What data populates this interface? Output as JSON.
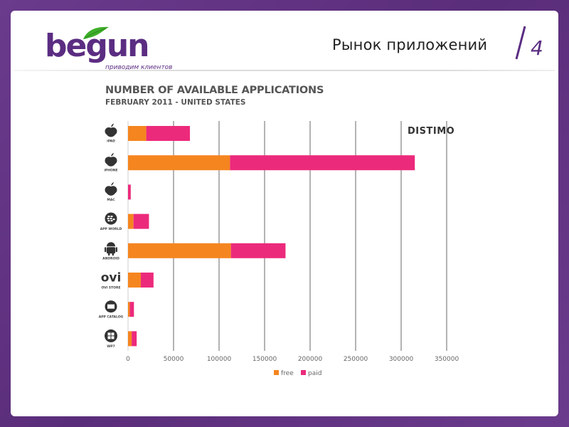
{
  "header": {
    "logo_text": "begun",
    "logo_tagline": "приводим клиентов",
    "title": "Рынок приложений",
    "page_number": "4"
  },
  "colors": {
    "background": "#5e3080",
    "brand": "#5b2d82",
    "free": "#f5851f",
    "paid": "#ec2a7b",
    "grid": "#8a8a8a"
  },
  "chart_data": {
    "type": "bar",
    "orientation": "horizontal",
    "stacked": true,
    "title": "NUMBER OF AVAILABLE APPLICATIONS",
    "subtitle": "FEBRUARY 2011  - UNITED STATES",
    "brand": "DISTIMO",
    "categories": [
      "iPAD",
      "iPHONE",
      "MAC",
      "APP WORLD",
      "ANDROID",
      "OVI STORE",
      "APP CATALOG",
      "WP7"
    ],
    "category_icons": [
      "apple-icon",
      "apple-icon",
      "apple-icon",
      "blackberry-icon",
      "android-icon",
      "ovi-icon",
      "palm-app-catalog-icon",
      "windows-icon"
    ],
    "series": [
      {
        "name": "free",
        "color": "#f5851f",
        "values": [
          20000,
          112000,
          0,
          6000,
          113000,
          14000,
          2000,
          4000
        ]
      },
      {
        "name": "paid",
        "color": "#ec2a7b",
        "values": [
          48000,
          203000,
          3000,
          17000,
          60000,
          14000,
          4500,
          5500
        ]
      }
    ],
    "xlim": [
      0,
      350000
    ],
    "xticks": [
      0,
      50000,
      100000,
      150000,
      200000,
      250000,
      300000,
      350000
    ],
    "xtick_labels": [
      "0",
      "50000",
      "100000",
      "150000",
      "200000",
      "250000",
      "300000",
      "350000"
    ],
    "grid": true,
    "legend": "bottom-center"
  }
}
